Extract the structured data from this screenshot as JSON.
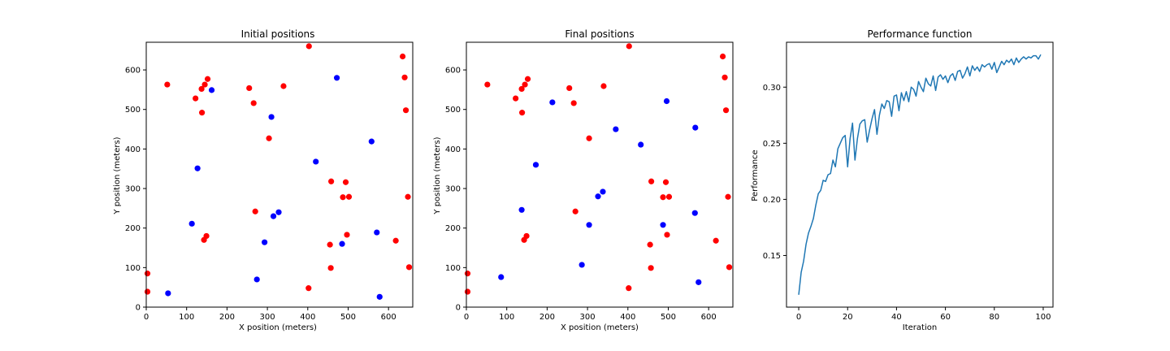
{
  "chart_data": [
    {
      "type": "scatter",
      "title": "Initial positions",
      "xlabel": "X position (meters)",
      "ylabel": "Y position (meters)",
      "xlim": [
        0,
        660
      ],
      "ylim": [
        0,
        670
      ],
      "xticks": [
        0,
        100,
        200,
        300,
        400,
        500,
        600
      ],
      "yticks": [
        0,
        100,
        200,
        300,
        400,
        500,
        600
      ],
      "series": [
        {
          "color": "#ff0000",
          "points": [
            [
              52,
              563
            ],
            [
              122,
              528
            ],
            [
              137,
              552
            ],
            [
              145,
              563
            ],
            [
              152,
              577
            ],
            [
              138,
              492
            ],
            [
              255,
              554
            ],
            [
              266,
              516
            ],
            [
              340,
              559
            ],
            [
              304,
              427
            ],
            [
              403,
              660
            ],
            [
              635,
              634
            ],
            [
              640,
              581
            ],
            [
              643,
              498
            ],
            [
              648,
              279
            ],
            [
              458,
              318
            ],
            [
              494,
              316
            ],
            [
              487,
              278
            ],
            [
              502,
              279
            ],
            [
              497,
              183
            ],
            [
              455,
              158
            ],
            [
              457,
              99
            ],
            [
              618,
              168
            ],
            [
              651,
              101
            ],
            [
              270,
              242
            ],
            [
              149,
              180
            ],
            [
              143,
              170
            ],
            [
              402,
              48
            ],
            [
              3,
              85
            ],
            [
              3,
              39
            ]
          ]
        },
        {
          "color": "#0000ff",
          "points": [
            [
              162,
              549
            ],
            [
              472,
              580
            ],
            [
              310,
              481
            ],
            [
              558,
              419
            ],
            [
              420,
              368
            ],
            [
              127,
              351
            ],
            [
              113,
              211
            ],
            [
              328,
              240
            ],
            [
              315,
              230
            ],
            [
              293,
              164
            ],
            [
              274,
              70
            ],
            [
              54,
              35
            ],
            [
              571,
              189
            ],
            [
              485,
              160
            ],
            [
              578,
              26
            ]
          ]
        }
      ]
    },
    {
      "type": "scatter",
      "title": "Final positions",
      "xlabel": "X position (meters)",
      "ylabel": "Y position (meters)",
      "xlim": [
        0,
        660
      ],
      "ylim": [
        0,
        670
      ],
      "xticks": [
        0,
        100,
        200,
        300,
        400,
        500,
        600
      ],
      "yticks": [
        0,
        100,
        200,
        300,
        400,
        500,
        600
      ],
      "series": [
        {
          "color": "#ff0000",
          "points": [
            [
              52,
              563
            ],
            [
              122,
              528
            ],
            [
              137,
              552
            ],
            [
              145,
              563
            ],
            [
              152,
              577
            ],
            [
              138,
              492
            ],
            [
              255,
              554
            ],
            [
              266,
              516
            ],
            [
              340,
              559
            ],
            [
              304,
              427
            ],
            [
              403,
              660
            ],
            [
              635,
              634
            ],
            [
              640,
              581
            ],
            [
              643,
              498
            ],
            [
              648,
              279
            ],
            [
              458,
              318
            ],
            [
              494,
              316
            ],
            [
              487,
              278
            ],
            [
              502,
              279
            ],
            [
              497,
              183
            ],
            [
              455,
              158
            ],
            [
              457,
              99
            ],
            [
              618,
              168
            ],
            [
              651,
              101
            ],
            [
              270,
              242
            ],
            [
              149,
              180
            ],
            [
              143,
              170
            ],
            [
              402,
              48
            ],
            [
              3,
              85
            ],
            [
              3,
              39
            ]
          ]
        },
        {
          "color": "#0000ff",
          "points": [
            [
              213,
              518
            ],
            [
              370,
              450
            ],
            [
              432,
              411
            ],
            [
              496,
              521
            ],
            [
              567,
              454
            ],
            [
              172,
              360
            ],
            [
              137,
              246
            ],
            [
              338,
              292
            ],
            [
              326,
              280
            ],
            [
              304,
              208
            ],
            [
              487,
              208
            ],
            [
              566,
              238
            ],
            [
              86,
              76
            ],
            [
              286,
              107
            ],
            [
              575,
              63
            ]
          ]
        }
      ]
    },
    {
      "type": "line",
      "title": "Performance function",
      "xlabel": "Iteration",
      "ylabel": "Performance",
      "xlim": [
        -5,
        104
      ],
      "ylim": [
        0.104,
        0.34
      ],
      "xticks": [
        0,
        20,
        40,
        60,
        80,
        100
      ],
      "yticks": [
        0.15,
        0.2,
        0.25,
        0.3
      ],
      "ytick_labels": [
        "0.15",
        "0.20",
        "0.25",
        "0.30"
      ],
      "series": [
        {
          "color": "#1f77b4",
          "x": [
            0,
            1,
            2,
            3,
            4,
            5,
            6,
            7,
            8,
            9,
            10,
            11,
            12,
            13,
            14,
            15,
            16,
            17,
            18,
            19,
            20,
            21,
            22,
            23,
            24,
            25,
            26,
            27,
            28,
            29,
            30,
            31,
            32,
            33,
            34,
            35,
            36,
            37,
            38,
            39,
            40,
            41,
            42,
            43,
            44,
            45,
            46,
            47,
            48,
            49,
            50,
            51,
            52,
            53,
            54,
            55,
            56,
            57,
            58,
            59,
            60,
            61,
            62,
            63,
            64,
            65,
            66,
            67,
            68,
            69,
            70,
            71,
            72,
            73,
            74,
            75,
            76,
            77,
            78,
            79,
            80,
            81,
            82,
            83,
            84,
            85,
            86,
            87,
            88,
            89,
            90,
            91,
            92,
            93,
            94,
            95,
            96,
            97,
            98,
            99
          ],
          "y": [
            0.115,
            0.135,
            0.145,
            0.16,
            0.17,
            0.176,
            0.183,
            0.195,
            0.205,
            0.208,
            0.217,
            0.216,
            0.222,
            0.223,
            0.235,
            0.229,
            0.245,
            0.25,
            0.255,
            0.257,
            0.229,
            0.254,
            0.268,
            0.235,
            0.254,
            0.267,
            0.27,
            0.271,
            0.251,
            0.262,
            0.272,
            0.28,
            0.258,
            0.275,
            0.285,
            0.281,
            0.288,
            0.287,
            0.274,
            0.292,
            0.293,
            0.279,
            0.295,
            0.288,
            0.296,
            0.287,
            0.3,
            0.298,
            0.292,
            0.305,
            0.3,
            0.296,
            0.308,
            0.303,
            0.301,
            0.31,
            0.297,
            0.309,
            0.311,
            0.307,
            0.31,
            0.304,
            0.31,
            0.312,
            0.306,
            0.314,
            0.315,
            0.308,
            0.312,
            0.318,
            0.31,
            0.319,
            0.315,
            0.318,
            0.314,
            0.32,
            0.318,
            0.32,
            0.321,
            0.316,
            0.322,
            0.313,
            0.318,
            0.323,
            0.32,
            0.324,
            0.322,
            0.325,
            0.32,
            0.326,
            0.322,
            0.325,
            0.327,
            0.325,
            0.327,
            0.326,
            0.328,
            0.328,
            0.325,
            0.329
          ]
        }
      ]
    }
  ]
}
